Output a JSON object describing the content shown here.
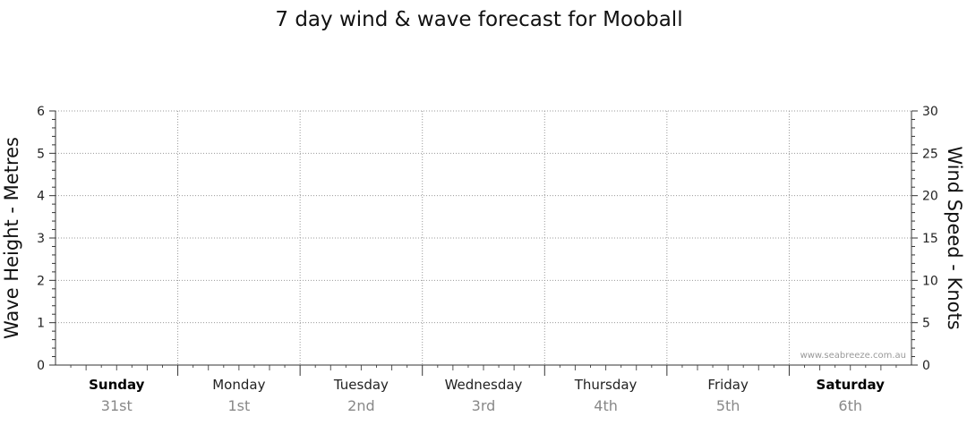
{
  "chart_data": {
    "type": "line",
    "title": "7 day wind & wave forecast for Mooball",
    "ylabel_left": "Wave Height - Metres",
    "ylabel_right": "Wind Speed - Knots",
    "ylim_left": [
      0,
      6
    ],
    "ylim_right": [
      0,
      30
    ],
    "yticks_left": [
      "0",
      "1",
      "2",
      "3",
      "4",
      "5",
      "6"
    ],
    "yticks_right": [
      "0",
      "5",
      "10",
      "15",
      "20",
      "25",
      "30"
    ],
    "grid": true,
    "days": [
      {
        "name": "Sunday",
        "date": "31st",
        "weekend": true
      },
      {
        "name": "Monday",
        "date": "1st",
        "weekend": false
      },
      {
        "name": "Tuesday",
        "date": "2nd",
        "weekend": false
      },
      {
        "name": "Wednesday",
        "date": "3rd",
        "weekend": false
      },
      {
        "name": "Thursday",
        "date": "4th",
        "weekend": false
      },
      {
        "name": "Friday",
        "date": "5th",
        "weekend": false
      },
      {
        "name": "Saturday",
        "date": "6th",
        "weekend": true
      }
    ],
    "series": []
  },
  "watermark": "www.seabreeze.com.au"
}
